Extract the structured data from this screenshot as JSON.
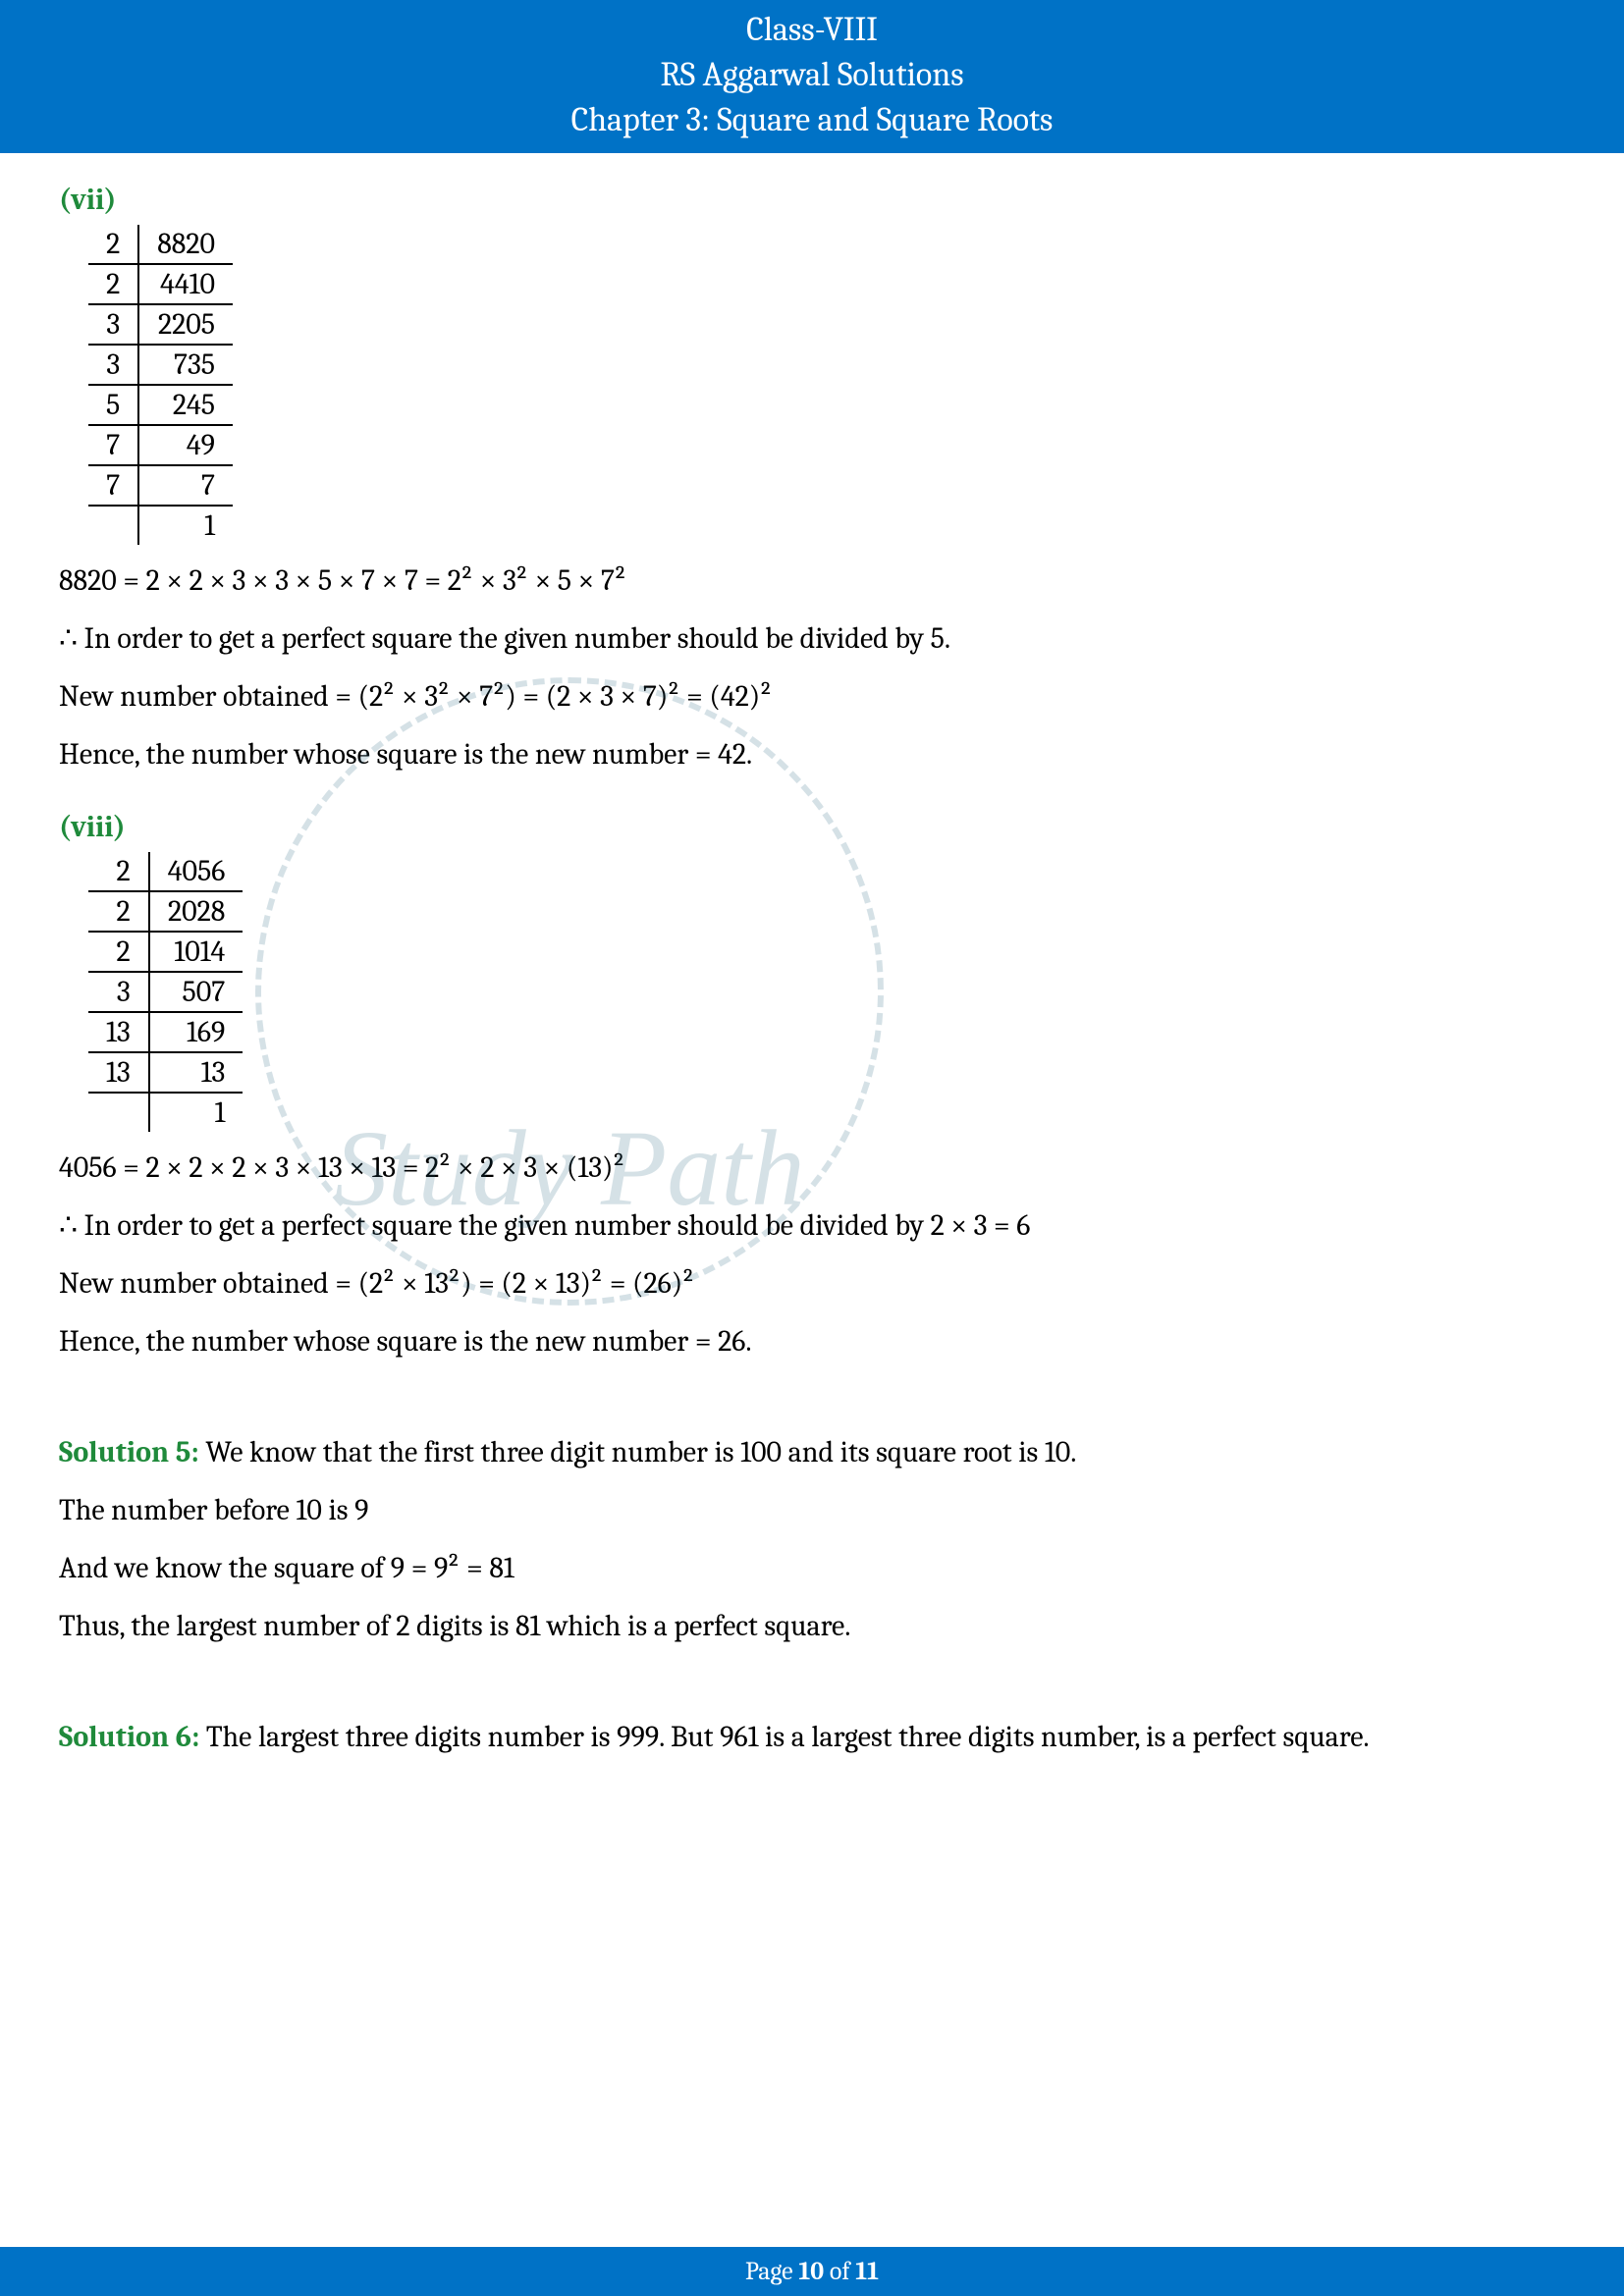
{
  "header": {
    "line1": "Class-VIII",
    "line2": "RS Aggarwal Solutions",
    "line3": "Chapter 3: Square and Square Roots"
  },
  "watermark": "Study Path",
  "section7": {
    "label": "(vii)",
    "rows": [
      {
        "d": "2",
        "q": "8820"
      },
      {
        "d": "2",
        "q": "4410"
      },
      {
        "d": "3",
        "q": "2205"
      },
      {
        "d": "3",
        "q": "735"
      },
      {
        "d": "5",
        "q": "245"
      },
      {
        "d": "7",
        "q": "49"
      },
      {
        "d": "7",
        "q": "7"
      },
      {
        "d": "",
        "q": "1"
      }
    ],
    "eq": "8820 = 2 × 2 × 3 × 3 × 5 × 7 × 7 = 2² × 3² × 5 × 7²",
    "line2": "∴ In order to get a perfect square the given number should be divided by 5.",
    "line3": "New number obtained = (2² × 3² × 7²) = (2 × 3 × 7)² = (42)²",
    "line4": "Hence, the number whose square is the new number = 42."
  },
  "section8": {
    "label": "(viii)",
    "rows": [
      {
        "d": "2",
        "q": "4056"
      },
      {
        "d": "2",
        "q": "2028"
      },
      {
        "d": "2",
        "q": "1014"
      },
      {
        "d": "3",
        "q": "507"
      },
      {
        "d": "13",
        "q": "169"
      },
      {
        "d": "13",
        "q": "13"
      },
      {
        "d": "",
        "q": "1"
      }
    ],
    "eq": "4056 = 2 × 2 × 2 × 3 × 13 × 13 = 2² × 2 × 3 × (13)²",
    "line2": "∴ In order to get a perfect square the given number should be divided by 2 × 3 = 6",
    "line3": "New number obtained = (2² × 13²) = (2 × 13)² = (26)²",
    "line4": "Hence, the number whose square is the new number = 26."
  },
  "solution5": {
    "label": "Solution 5:",
    "line1": " We know that the first three digit number is 100 and its square root is 10.",
    "line2": "The number before 10 is 9",
    "line3": "And we know the square of 9 = 9² = 81",
    "line4": "Thus, the largest number of 2 digits is 81 which is a perfect square."
  },
  "solution6": {
    "label": "Solution 6:",
    "line1": " The largest three digits number is 999. But 961 is a largest three digits number, is a perfect square."
  },
  "footer": {
    "prefix": "Page ",
    "current": "10",
    "middle": " of ",
    "total": "11"
  }
}
